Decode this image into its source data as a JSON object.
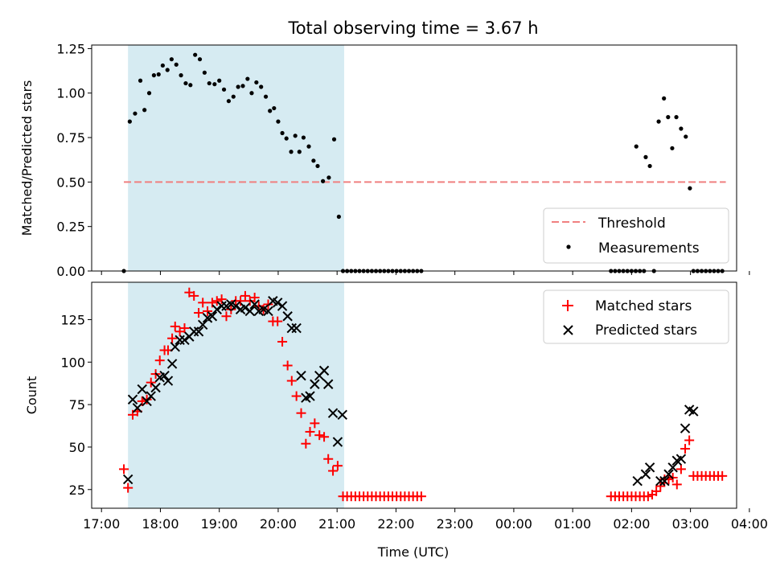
{
  "title": "Total observing time = 3.67 h",
  "chart_data": [
    {
      "type": "scatter",
      "ylabel": "Matched/Predicted stars",
      "xlim": [
        -0.1667,
        10.7833
      ],
      "ylim": [
        0,
        1.27
      ],
      "yticks": [
        0.0,
        0.25,
        0.5,
        0.75,
        1.0,
        1.25
      ],
      "ytick_labels": [
        "0.00",
        "0.25",
        "0.50",
        "0.75",
        "1.00",
        "1.25"
      ],
      "shaded_span": [
        0.45,
        4.12
      ],
      "threshold": {
        "value": 0.5,
        "x_range": [
          0.38,
          10.6
        ],
        "color": "#f08080",
        "label": "Threshold"
      },
      "legend_position": "lower right",
      "series": [
        {
          "name": "Measurements",
          "marker": "dot",
          "color": "#000000",
          "points": [
            [
              0.38,
              0.0
            ],
            [
              0.48,
              0.84
            ],
            [
              0.57,
              0.885
            ],
            [
              0.66,
              1.07
            ],
            [
              0.73,
              0.905
            ],
            [
              0.81,
              1.0
            ],
            [
              0.89,
              1.1
            ],
            [
              0.97,
              1.105
            ],
            [
              1.04,
              1.155
            ],
            [
              1.12,
              1.13
            ],
            [
              1.19,
              1.19
            ],
            [
              1.27,
              1.16
            ],
            [
              1.35,
              1.1
            ],
            [
              1.43,
              1.055
            ],
            [
              1.51,
              1.045
            ],
            [
              1.59,
              1.215
            ],
            [
              1.67,
              1.19
            ],
            [
              1.75,
              1.115
            ],
            [
              1.83,
              1.055
            ],
            [
              1.92,
              1.05
            ],
            [
              2.0,
              1.07
            ],
            [
              2.08,
              1.02
            ],
            [
              2.16,
              0.955
            ],
            [
              2.24,
              0.98
            ],
            [
              2.32,
              1.035
            ],
            [
              2.4,
              1.04
            ],
            [
              2.48,
              1.08
            ],
            [
              2.55,
              1.0
            ],
            [
              2.63,
              1.06
            ],
            [
              2.71,
              1.035
            ],
            [
              2.79,
              0.98
            ],
            [
              2.86,
              0.9
            ],
            [
              2.93,
              0.915
            ],
            [
              3.0,
              0.84
            ],
            [
              3.07,
              0.775
            ],
            [
              3.14,
              0.745
            ],
            [
              3.22,
              0.67
            ],
            [
              3.29,
              0.76
            ],
            [
              3.36,
              0.67
            ],
            [
              3.43,
              0.75
            ],
            [
              3.52,
              0.7
            ],
            [
              3.6,
              0.62
            ],
            [
              3.67,
              0.59
            ],
            [
              3.76,
              0.505
            ],
            [
              3.86,
              0.525
            ],
            [
              3.95,
              0.74
            ],
            [
              4.03,
              0.305
            ],
            [
              4.1,
              0.0
            ],
            [
              4.17,
              0.0
            ],
            [
              4.24,
              0.0
            ],
            [
              4.31,
              0.0
            ],
            [
              4.38,
              0.0
            ],
            [
              4.45,
              0.0
            ],
            [
              4.52,
              0.0
            ],
            [
              4.59,
              0.0
            ],
            [
              4.66,
              0.0
            ],
            [
              4.73,
              0.0
            ],
            [
              4.8,
              0.0
            ],
            [
              4.87,
              0.0
            ],
            [
              4.94,
              0.0
            ],
            [
              5.01,
              0.0
            ],
            [
              5.08,
              0.0
            ],
            [
              5.15,
              0.0
            ],
            [
              5.22,
              0.0
            ],
            [
              5.29,
              0.0
            ],
            [
              5.36,
              0.0
            ],
            [
              5.43,
              0.0
            ],
            [
              8.65,
              0.0
            ],
            [
              8.72,
              0.0
            ],
            [
              8.79,
              0.0
            ],
            [
              8.86,
              0.0
            ],
            [
              8.93,
              0.0
            ],
            [
              9.0,
              0.0
            ],
            [
              9.07,
              0.0
            ],
            [
              9.14,
              0.0
            ],
            [
              9.21,
              0.0
            ],
            [
              9.08,
              0.7
            ],
            [
              9.24,
              0.64
            ],
            [
              9.31,
              0.59
            ],
            [
              9.38,
              0.0
            ],
            [
              9.46,
              0.84
            ],
            [
              9.55,
              0.97
            ],
            [
              9.62,
              0.865
            ],
            [
              9.69,
              0.69
            ],
            [
              9.76,
              0.865
            ],
            [
              9.84,
              0.8
            ],
            [
              9.92,
              0.755
            ],
            [
              9.99,
              0.465
            ],
            [
              10.05,
              0.0
            ],
            [
              10.12,
              0.0
            ],
            [
              10.19,
              0.0
            ],
            [
              10.26,
              0.0
            ],
            [
              10.33,
              0.0
            ],
            [
              10.4,
              0.0
            ],
            [
              10.47,
              0.0
            ],
            [
              10.54,
              0.0
            ]
          ]
        }
      ]
    },
    {
      "type": "scatter",
      "ylabel": "Count",
      "xlabel": "Time (UTC)",
      "xlim": [
        -0.1667,
        10.7833
      ],
      "ylim": [
        14,
        147
      ],
      "xticks": [
        0,
        1,
        2,
        3,
        4,
        5,
        6,
        7,
        8,
        9,
        10,
        11
      ],
      "xtick_labels": [
        "17:00",
        "18:00",
        "19:00",
        "20:00",
        "21:00",
        "22:00",
        "23:00",
        "00:00",
        "01:00",
        "02:00",
        "03:00",
        "04:00"
      ],
      "yticks": [
        25,
        50,
        75,
        100,
        125
      ],
      "ytick_labels": [
        "25",
        "50",
        "75",
        "100",
        "125"
      ],
      "shaded_span": [
        0.45,
        4.12
      ],
      "legend_position": "upper right",
      "series": [
        {
          "name": "Matched stars",
          "marker": "plus",
          "color": "#ff0000",
          "points": [
            [
              0.38,
              37
            ],
            [
              0.45,
              26
            ],
            [
              0.53,
              69
            ],
            [
              0.61,
              71
            ],
            [
              0.69,
              77
            ],
            [
              0.77,
              78
            ],
            [
              0.84,
              88
            ],
            [
              0.92,
              93
            ],
            [
              0.99,
              101
            ],
            [
              1.07,
              107
            ],
            [
              1.13,
              107
            ],
            [
              1.2,
              114
            ],
            [
              1.25,
              121
            ],
            [
              1.33,
              118
            ],
            [
              1.41,
              120
            ],
            [
              1.49,
              141
            ],
            [
              1.57,
              139
            ],
            [
              1.65,
              129
            ],
            [
              1.72,
              135
            ],
            [
              1.8,
              130
            ],
            [
              1.88,
              135
            ],
            [
              1.96,
              136
            ],
            [
              2.04,
              137
            ],
            [
              2.12,
              127
            ],
            [
              2.2,
              131
            ],
            [
              2.28,
              136
            ],
            [
              2.36,
              136
            ],
            [
              2.44,
              139
            ],
            [
              2.52,
              136
            ],
            [
              2.6,
              138
            ],
            [
              2.67,
              133
            ],
            [
              2.75,
              131
            ],
            [
              2.83,
              134
            ],
            [
              2.91,
              124
            ],
            [
              2.99,
              124
            ],
            [
              3.07,
              112
            ],
            [
              3.16,
              98
            ],
            [
              3.23,
              89
            ],
            [
              3.31,
              80
            ],
            [
              3.39,
              70
            ],
            [
              3.47,
              52
            ],
            [
              3.54,
              59
            ],
            [
              3.62,
              64
            ],
            [
              3.7,
              57
            ],
            [
              3.78,
              56
            ],
            [
              3.85,
              43
            ],
            [
              3.93,
              36
            ],
            [
              4.01,
              39
            ],
            [
              4.1,
              21
            ],
            [
              4.17,
              21
            ],
            [
              4.24,
              21
            ],
            [
              4.31,
              21
            ],
            [
              4.38,
              21
            ],
            [
              4.45,
              21
            ],
            [
              4.52,
              21
            ],
            [
              4.59,
              21
            ],
            [
              4.66,
              21
            ],
            [
              4.73,
              21
            ],
            [
              4.8,
              21
            ],
            [
              4.87,
              21
            ],
            [
              4.94,
              21
            ],
            [
              5.01,
              21
            ],
            [
              5.08,
              21
            ],
            [
              5.15,
              21
            ],
            [
              5.22,
              21
            ],
            [
              5.29,
              21
            ],
            [
              5.36,
              21
            ],
            [
              5.43,
              21
            ],
            [
              8.65,
              21
            ],
            [
              8.72,
              21
            ],
            [
              8.79,
              21
            ],
            [
              8.86,
              21
            ],
            [
              8.93,
              21
            ],
            [
              9.0,
              21
            ],
            [
              9.07,
              21
            ],
            [
              9.14,
              21
            ],
            [
              9.21,
              21
            ],
            [
              9.28,
              21
            ],
            [
              9.35,
              22
            ],
            [
              9.42,
              24
            ],
            [
              9.49,
              27
            ],
            [
              9.56,
              31
            ],
            [
              9.63,
              31
            ],
            [
              9.7,
              32
            ],
            [
              9.77,
              28
            ],
            [
              9.84,
              37
            ],
            [
              9.91,
              49
            ],
            [
              9.98,
              54
            ],
            [
              10.05,
              33
            ],
            [
              10.12,
              33
            ],
            [
              10.19,
              33
            ],
            [
              10.26,
              33
            ],
            [
              10.33,
              33
            ],
            [
              10.4,
              33
            ],
            [
              10.47,
              33
            ],
            [
              10.54,
              33
            ]
          ]
        },
        {
          "name": "Predicted stars",
          "marker": "x",
          "color": "#000000",
          "points": [
            [
              0.45,
              31
            ],
            [
              0.53,
              78
            ],
            [
              0.61,
              73
            ],
            [
              0.69,
              84
            ],
            [
              0.77,
              77
            ],
            [
              0.84,
              80
            ],
            [
              0.92,
              85
            ],
            [
              0.99,
              91
            ],
            [
              1.07,
              92
            ],
            [
              1.13,
              89
            ],
            [
              1.2,
              99
            ],
            [
              1.25,
              109
            ],
            [
              1.33,
              113
            ],
            [
              1.41,
              113
            ],
            [
              1.49,
              115
            ],
            [
              1.57,
              118
            ],
            [
              1.65,
              118
            ],
            [
              1.72,
              122
            ],
            [
              1.8,
              126
            ],
            [
              1.88,
              127
            ],
            [
              1.96,
              131
            ],
            [
              2.04,
              133
            ],
            [
              2.12,
              133
            ],
            [
              2.2,
              134
            ],
            [
              2.28,
              133
            ],
            [
              2.36,
              131
            ],
            [
              2.44,
              132
            ],
            [
              2.52,
              130
            ],
            [
              2.6,
              134
            ],
            [
              2.67,
              130
            ],
            [
              2.75,
              131
            ],
            [
              2.83,
              130
            ],
            [
              2.91,
              136
            ],
            [
              2.99,
              135
            ],
            [
              3.07,
              133
            ],
            [
              3.16,
              127
            ],
            [
              3.23,
              120
            ],
            [
              3.31,
              120
            ],
            [
              3.39,
              92
            ],
            [
              3.47,
              79
            ],
            [
              3.54,
              80
            ],
            [
              3.62,
              87
            ],
            [
              3.7,
              92
            ],
            [
              3.78,
              95
            ],
            [
              3.85,
              87
            ],
            [
              3.93,
              70
            ],
            [
              4.01,
              53
            ],
            [
              4.09,
              69
            ],
            [
              9.1,
              30
            ],
            [
              9.24,
              34
            ],
            [
              9.31,
              38
            ],
            [
              9.49,
              30
            ],
            [
              9.56,
              30
            ],
            [
              9.63,
              34
            ],
            [
              9.7,
              38
            ],
            [
              9.77,
              42
            ],
            [
              9.84,
              43
            ],
            [
              9.91,
              61
            ],
            [
              9.98,
              72
            ],
            [
              10.05,
              71
            ]
          ]
        }
      ]
    }
  ]
}
